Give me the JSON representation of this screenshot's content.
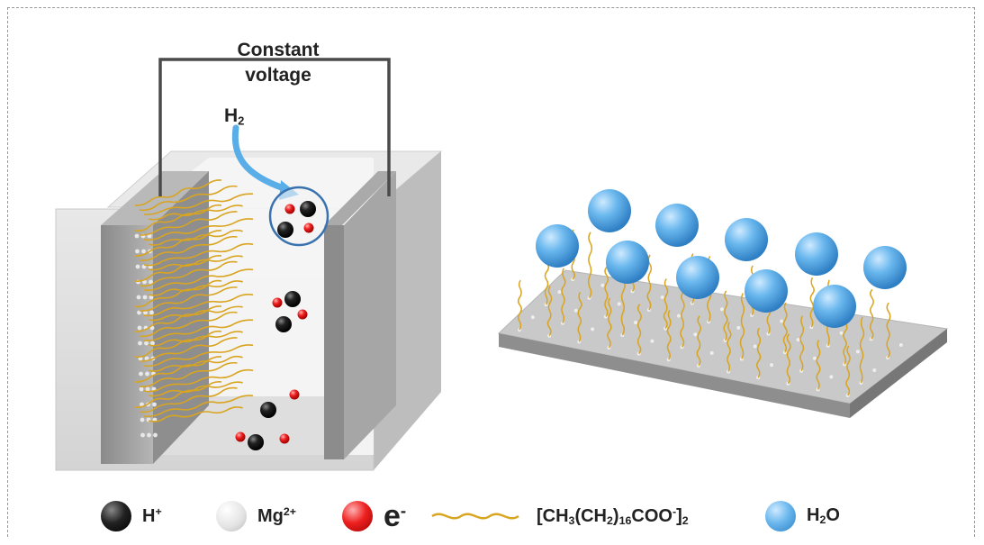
{
  "labels": {
    "constant_voltage_line1": "Constant",
    "constant_voltage_line2": "voltage",
    "h2_main": "H",
    "h2_sub": "2"
  },
  "legend": [
    {
      "id": "h-plus",
      "text": "H",
      "sup": "+",
      "color": "#1a1a1a"
    },
    {
      "id": "mg",
      "text": "Mg",
      "sup": "2+",
      "color": "#e6e6e6"
    },
    {
      "id": "electron",
      "text": "e",
      "sup": "-",
      "color": "#e01010"
    },
    {
      "id": "stearate",
      "text": "[CH",
      "sub1": "3",
      "mid1": "(CH",
      "sub2": "2",
      "mid2": ")",
      "sub3": "16",
      "mid3": "COO",
      "sup": "-",
      "end": "]",
      "sub4": "2",
      "color": "#d9a420"
    },
    {
      "id": "water",
      "text": "H",
      "sub1": "2",
      "end": "O",
      "color": "#5aaee8"
    }
  ],
  "colors": {
    "chain": "#d9a420",
    "water": "#5aaee8",
    "electron": "#e01010",
    "proton": "#1a1a1a",
    "wire": "#4a4a4a",
    "arrow": "#5aaee8"
  }
}
